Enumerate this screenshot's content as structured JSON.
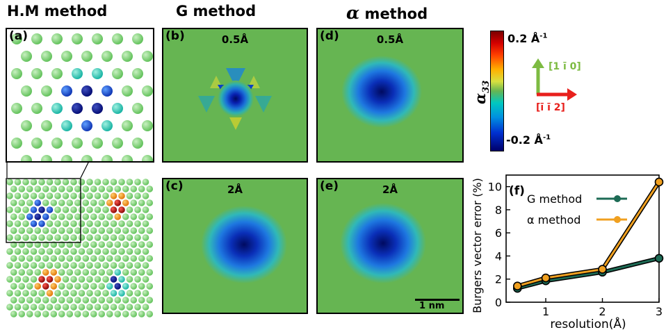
{
  "column_titles": {
    "hm": "H.M method",
    "g": "G method",
    "alpha": "α method"
  },
  "panels": {
    "a": "(a)",
    "b": "(b)",
    "c": "(c)",
    "d": "(d)",
    "e": "(e)",
    "f": "(f)"
  },
  "resolutions": {
    "b": "0.5Å",
    "c": "2Å",
    "d": "0.5Å",
    "e": "2Å"
  },
  "colorbar": {
    "max_label": "0.2 Å",
    "min_label": "-0.2 Å",
    "unit_sup": "-1",
    "quantity": "α",
    "quantity_sub": "33"
  },
  "directions": {
    "green": "[1 ī 0]",
    "red": "[ī ī 2]",
    "green_color": "#7dbb42",
    "red_color": "#e8201c"
  },
  "scalebar": "1 nm",
  "colors": {
    "field_green": "#66b552",
    "atom_green": "#6fcf66",
    "g_series": "#1d6b55",
    "alpha_series": "#f0a020"
  },
  "chart_data": {
    "type": "line",
    "xlabel": "resolution(Å)",
    "ylabel": "Burgers vector error (%)",
    "xlim": [
      0.3,
      3.0
    ],
    "ylim": [
      0,
      11
    ],
    "xticks": [
      1,
      2,
      3
    ],
    "yticks": [
      0,
      2,
      4,
      6,
      8,
      10
    ],
    "legend_position": "top-left",
    "series": [
      {
        "name": "G method",
        "color": "#1d6b55",
        "x": [
          0.5,
          1,
          2,
          3
        ],
        "y": [
          1.2,
          1.85,
          2.6,
          3.8
        ]
      },
      {
        "name": "α method",
        "color": "#f0a020",
        "x": [
          0.5,
          1,
          2,
          3
        ],
        "y": [
          1.4,
          2.1,
          2.85,
          10.4
        ]
      }
    ]
  }
}
